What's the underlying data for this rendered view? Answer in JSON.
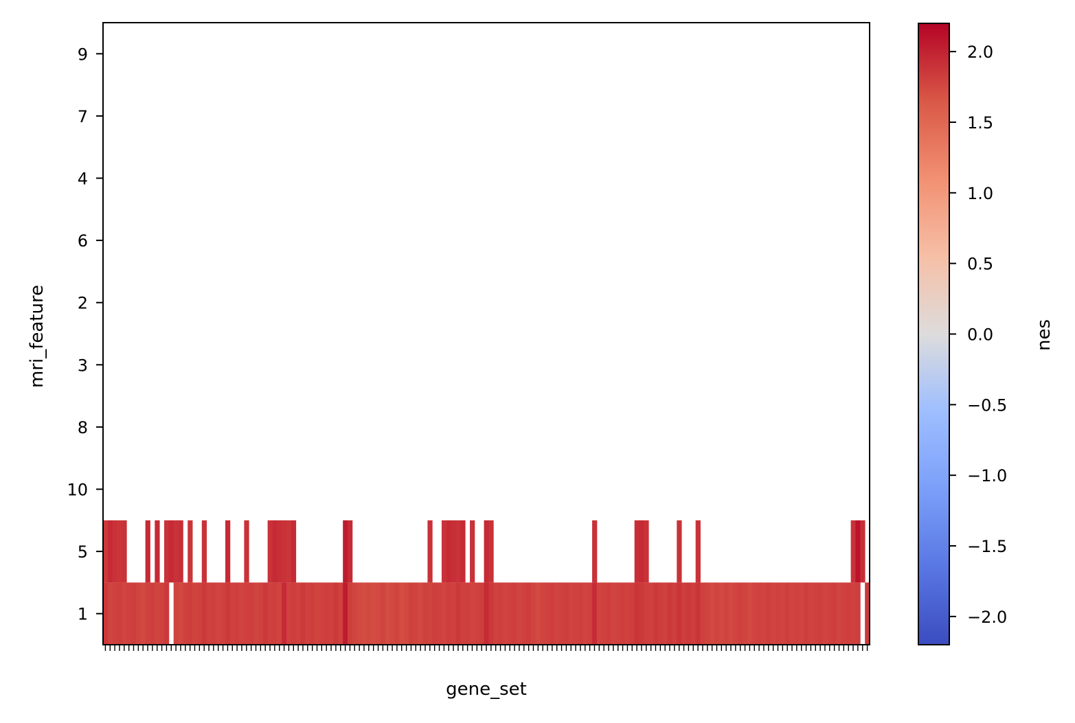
{
  "chart_data": {
    "type": "heatmap",
    "title": "",
    "xlabel": "gene_set",
    "ylabel": "mri_feature",
    "rows": [
      "9",
      "7",
      "4",
      "6",
      "2",
      "3",
      "8",
      "10",
      "5",
      "1"
    ],
    "n_columns": 163,
    "x_tick_labels_visible": false,
    "colorbar": {
      "label": "nes",
      "colormap": "coolwarm",
      "vmin": -2.2,
      "vmax": 2.2,
      "ticks": [
        -2.0,
        -1.5,
        -1.0,
        -0.5,
        0.0,
        0.5,
        1.0,
        1.5,
        2.0
      ],
      "tick_labels": [
        "−2.0",
        "−1.5",
        "−1.0",
        "−0.5",
        "0.0",
        "0.5",
        "1.0",
        "1.5",
        "2.0"
      ]
    },
    "row_values": {
      "9": [],
      "7": [],
      "4": [],
      "6": [],
      "2": [],
      "3": [],
      "8": [],
      "10": [],
      "5": [
        [
          0,
          1.85
        ],
        [
          1,
          1.95
        ],
        [
          2,
          1.9
        ],
        [
          3,
          1.88
        ],
        [
          4,
          1.9
        ],
        [
          9,
          1.95
        ],
        [
          11,
          1.95
        ],
        [
          13,
          1.9
        ],
        [
          14,
          1.95
        ],
        [
          15,
          1.9
        ],
        [
          16,
          1.92
        ],
        [
          18,
          1.88
        ],
        [
          21,
          1.9
        ],
        [
          26,
          1.95
        ],
        [
          30,
          1.9
        ],
        [
          35,
          1.9
        ],
        [
          36,
          1.95
        ],
        [
          37,
          1.92
        ],
        [
          38,
          1.9
        ],
        [
          39,
          1.88
        ],
        [
          40,
          1.95
        ],
        [
          51,
          2.05
        ],
        [
          52,
          1.95
        ],
        [
          69,
          1.9
        ],
        [
          72,
          1.9
        ],
        [
          73,
          1.95
        ],
        [
          74,
          1.92
        ],
        [
          75,
          1.9
        ],
        [
          76,
          1.95
        ],
        [
          78,
          1.9
        ],
        [
          81,
          1.95
        ],
        [
          82,
          1.9
        ],
        [
          104,
          1.9
        ],
        [
          113,
          1.92
        ],
        [
          114,
          1.95
        ],
        [
          115,
          1.9
        ],
        [
          122,
          1.9
        ],
        [
          126,
          1.9
        ],
        [
          159,
          1.9
        ],
        [
          160,
          2.1
        ],
        [
          161,
          1.92
        ]
      ],
      "1": [
        [
          0,
          1.85
        ],
        [
          1,
          1.78
        ],
        [
          2,
          1.8
        ],
        [
          3,
          1.82
        ],
        [
          4,
          1.78
        ],
        [
          5,
          1.8
        ],
        [
          6,
          1.82
        ],
        [
          7,
          1.78
        ],
        [
          8,
          1.75
        ],
        [
          9,
          1.8
        ],
        [
          10,
          1.82
        ],
        [
          11,
          1.78
        ],
        [
          12,
          1.8
        ],
        [
          13,
          1.85
        ],
        [
          15,
          1.78
        ],
        [
          16,
          1.75
        ],
        [
          17,
          1.8
        ],
        [
          18,
          1.82
        ],
        [
          19,
          1.78
        ],
        [
          20,
          1.8
        ],
        [
          21,
          1.85
        ],
        [
          22,
          1.8
        ],
        [
          23,
          1.82
        ],
        [
          24,
          1.78
        ],
        [
          25,
          1.8
        ],
        [
          26,
          1.85
        ],
        [
          27,
          1.8
        ],
        [
          28,
          1.82
        ],
        [
          29,
          1.78
        ],
        [
          30,
          1.8
        ],
        [
          31,
          1.82
        ],
        [
          32,
          1.78
        ],
        [
          33,
          1.8
        ],
        [
          34,
          1.85
        ],
        [
          35,
          1.8
        ],
        [
          36,
          1.82
        ],
        [
          37,
          1.78
        ],
        [
          38,
          1.95
        ],
        [
          39,
          1.8
        ],
        [
          40,
          1.82
        ],
        [
          41,
          1.8
        ],
        [
          42,
          1.85
        ],
        [
          43,
          1.8
        ],
        [
          44,
          1.82
        ],
        [
          45,
          1.78
        ],
        [
          46,
          1.8
        ],
        [
          47,
          1.82
        ],
        [
          48,
          1.8
        ],
        [
          49,
          1.85
        ],
        [
          50,
          1.8
        ],
        [
          51,
          2.05
        ],
        [
          52,
          1.82
        ],
        [
          53,
          1.78
        ],
        [
          54,
          1.75
        ],
        [
          55,
          1.72
        ],
        [
          56,
          1.75
        ],
        [
          57,
          1.72
        ],
        [
          58,
          1.75
        ],
        [
          59,
          1.78
        ],
        [
          60,
          1.72
        ],
        [
          61,
          1.75
        ],
        [
          62,
          1.78
        ],
        [
          63,
          1.72
        ],
        [
          64,
          1.75
        ],
        [
          65,
          1.8
        ],
        [
          66,
          1.78
        ],
        [
          67,
          1.75
        ],
        [
          68,
          1.8
        ],
        [
          69,
          1.78
        ],
        [
          70,
          1.82
        ],
        [
          71,
          1.8
        ],
        [
          72,
          1.78
        ],
        [
          73,
          1.82
        ],
        [
          74,
          1.8
        ],
        [
          75,
          1.85
        ],
        [
          76,
          1.8
        ],
        [
          77,
          1.82
        ],
        [
          78,
          1.78
        ],
        [
          79,
          1.8
        ],
        [
          80,
          1.82
        ],
        [
          81,
          1.95
        ],
        [
          82,
          1.85
        ],
        [
          83,
          1.8
        ],
        [
          84,
          1.82
        ],
        [
          85,
          1.78
        ],
        [
          86,
          1.8
        ],
        [
          87,
          1.82
        ],
        [
          88,
          1.78
        ],
        [
          89,
          1.8
        ],
        [
          90,
          1.82
        ],
        [
          91,
          1.78
        ],
        [
          92,
          1.75
        ],
        [
          93,
          1.78
        ],
        [
          94,
          1.8
        ],
        [
          95,
          1.82
        ],
        [
          96,
          1.78
        ],
        [
          97,
          1.8
        ],
        [
          98,
          1.82
        ],
        [
          99,
          1.78
        ],
        [
          100,
          1.8
        ],
        [
          101,
          1.82
        ],
        [
          102,
          1.78
        ],
        [
          103,
          1.8
        ],
        [
          104,
          1.95
        ],
        [
          105,
          1.78
        ],
        [
          106,
          1.8
        ],
        [
          107,
          1.82
        ],
        [
          108,
          1.78
        ],
        [
          109,
          1.8
        ],
        [
          110,
          1.82
        ],
        [
          111,
          1.8
        ],
        [
          112,
          1.82
        ],
        [
          113,
          1.88
        ],
        [
          114,
          1.85
        ],
        [
          115,
          1.82
        ],
        [
          116,
          1.8
        ],
        [
          117,
          1.85
        ],
        [
          118,
          1.82
        ],
        [
          119,
          1.8
        ],
        [
          120,
          1.85
        ],
        [
          121,
          1.82
        ],
        [
          122,
          1.88
        ],
        [
          123,
          1.82
        ],
        [
          124,
          1.85
        ],
        [
          125,
          1.82
        ],
        [
          126,
          1.88
        ],
        [
          127,
          1.8
        ],
        [
          128,
          1.78
        ],
        [
          129,
          1.75
        ],
        [
          130,
          1.78
        ],
        [
          131,
          1.75
        ],
        [
          132,
          1.78
        ],
        [
          133,
          1.75
        ],
        [
          134,
          1.78
        ],
        [
          135,
          1.8
        ],
        [
          136,
          1.78
        ],
        [
          137,
          1.75
        ],
        [
          138,
          1.78
        ],
        [
          139,
          1.8
        ],
        [
          140,
          1.78
        ],
        [
          141,
          1.82
        ],
        [
          142,
          1.78
        ],
        [
          143,
          1.8
        ],
        [
          144,
          1.78
        ],
        [
          145,
          1.82
        ],
        [
          146,
          1.78
        ],
        [
          147,
          1.8
        ],
        [
          148,
          1.78
        ],
        [
          149,
          1.82
        ],
        [
          150,
          1.78
        ],
        [
          151,
          1.8
        ],
        [
          152,
          1.82
        ],
        [
          153,
          1.78
        ],
        [
          154,
          1.8
        ],
        [
          155,
          1.82
        ],
        [
          156,
          1.78
        ],
        [
          157,
          1.8
        ],
        [
          158,
          1.82
        ],
        [
          159,
          1.8
        ],
        [
          160,
          1.82
        ],
        [
          162,
          1.85
        ]
      ]
    }
  }
}
